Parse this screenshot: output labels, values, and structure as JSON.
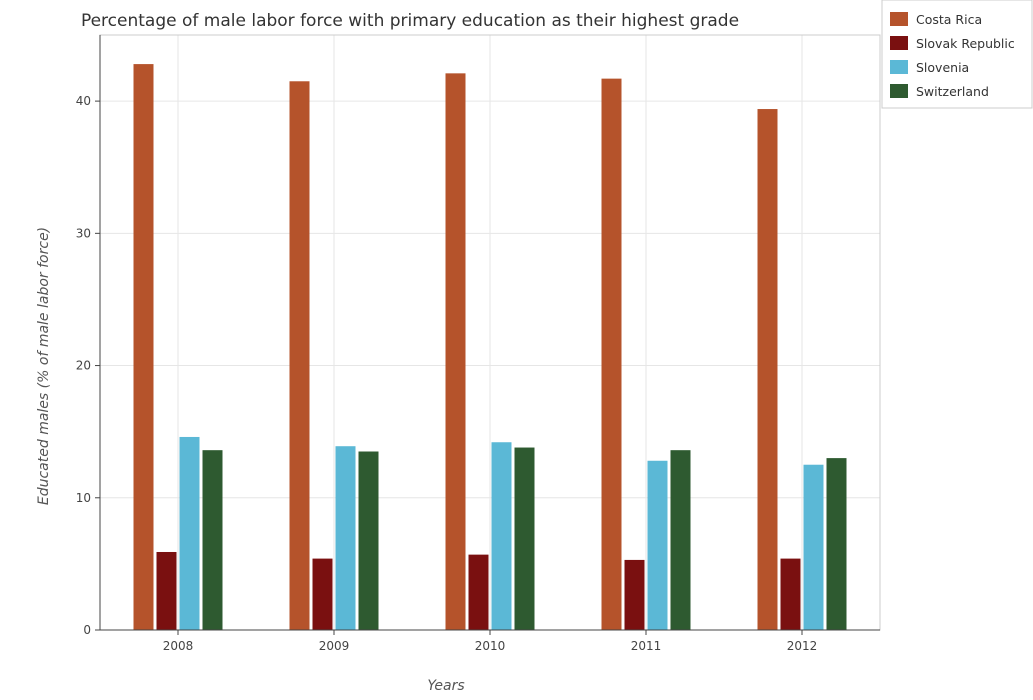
{
  "chart_data": {
    "type": "bar",
    "title": "Percentage of male labor force with primary education as their highest grade",
    "xlabel": "Years",
    "ylabel": "Educated males (% of male labor force)",
    "categories": [
      "2008",
      "2009",
      "2010",
      "2011",
      "2012"
    ],
    "ylim": [
      0,
      45
    ],
    "yticks": [
      0,
      10,
      20,
      30,
      40
    ],
    "grid": true,
    "legend_position": "top-right",
    "series": [
      {
        "name": "Costa Rica",
        "color": "#b5532b",
        "values": [
          42.8,
          41.5,
          42.1,
          41.7,
          39.4
        ]
      },
      {
        "name": "Slovak Republic",
        "color": "#7a1010",
        "values": [
          5.9,
          5.4,
          5.7,
          5.3,
          5.4
        ]
      },
      {
        "name": "Slovenia",
        "color": "#5bb8d6",
        "values": [
          14.6,
          13.9,
          14.2,
          12.8,
          12.5
        ]
      },
      {
        "name": "Switzerland",
        "color": "#2e5a30",
        "values": [
          13.6,
          13.5,
          13.8,
          13.6,
          13.0
        ]
      }
    ]
  }
}
